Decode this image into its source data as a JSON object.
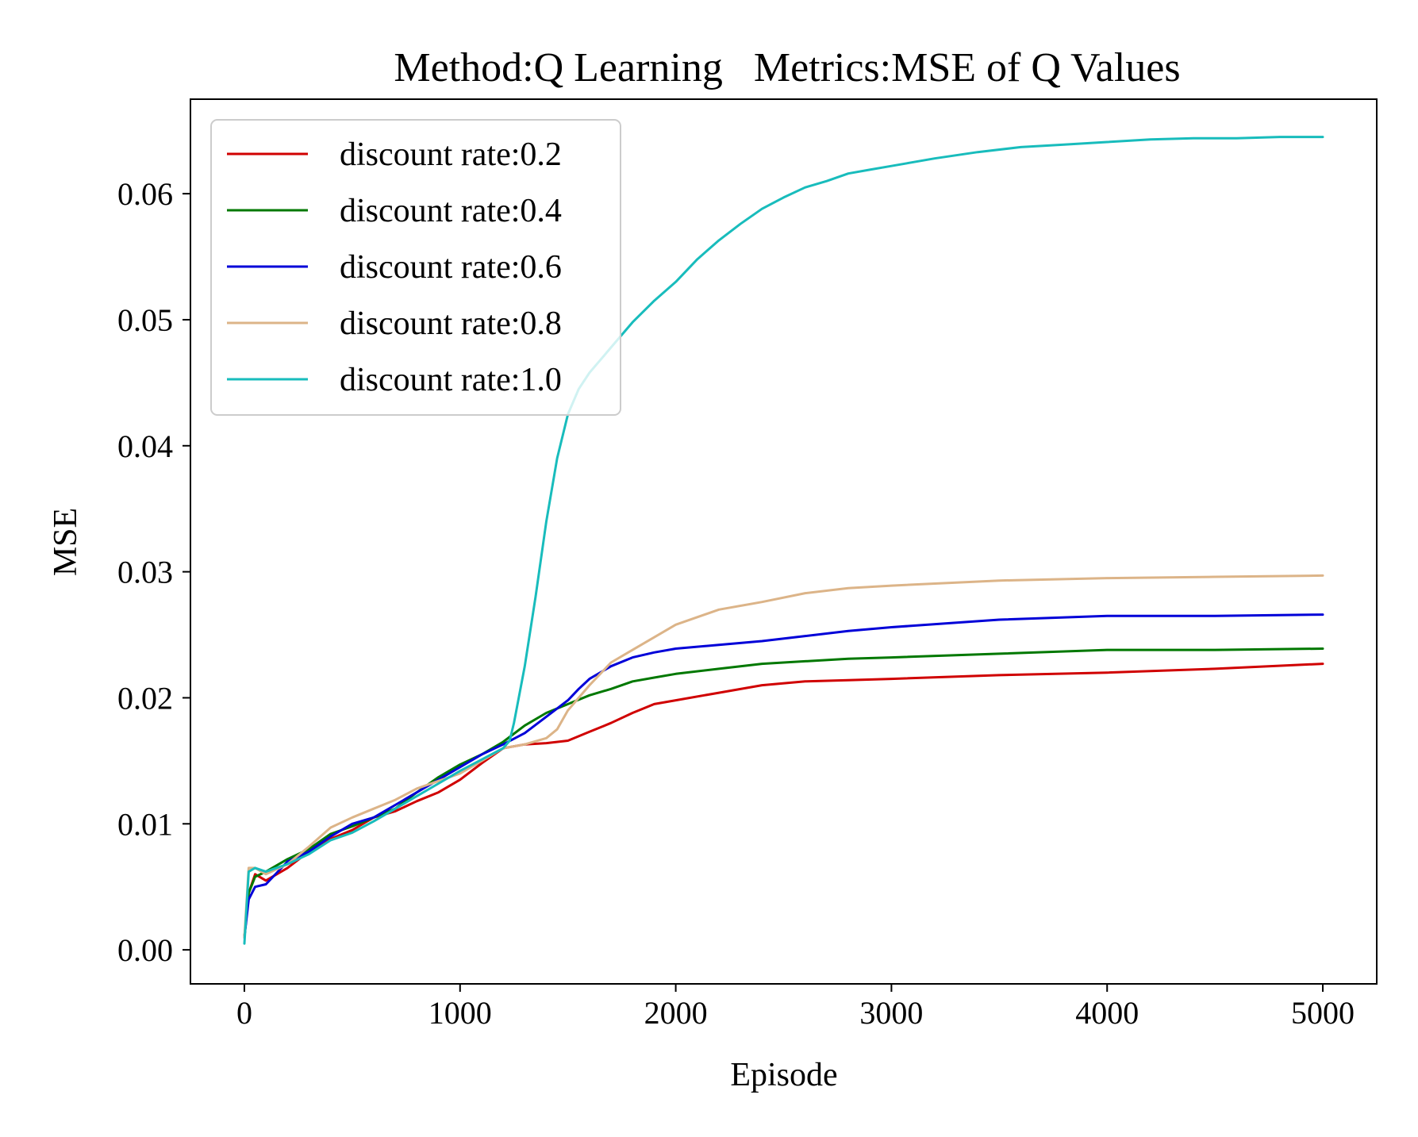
{
  "chart_data": {
    "type": "line",
    "title": "Method:Q Learning   Metrics:MSE of Q Values",
    "xlabel": "Episode",
    "ylabel": "MSE",
    "xlim": [
      -250,
      5250
    ],
    "ylim": [
      -0.0027,
      0.0675
    ],
    "xticks": [
      0,
      1000,
      2000,
      3000,
      4000,
      5000
    ],
    "xtick_labels": [
      "0",
      "1000",
      "2000",
      "3000",
      "4000",
      "5000"
    ],
    "yticks": [
      0.0,
      0.01,
      0.02,
      0.03,
      0.04,
      0.05,
      0.06
    ],
    "ytick_labels": [
      "0.00",
      "0.01",
      "0.02",
      "0.03",
      "0.04",
      "0.05",
      "0.06"
    ],
    "grid": false,
    "legend_position": "upper-left",
    "series": [
      {
        "name": "discount rate:0.2",
        "color": "#d00000",
        "x": [
          0,
          20,
          50,
          100,
          200,
          300,
          400,
          500,
          600,
          700,
          800,
          900,
          1000,
          1100,
          1200,
          1300,
          1400,
          1500,
          1600,
          1700,
          1800,
          1900,
          2000,
          2200,
          2400,
          2600,
          2800,
          3000,
          3500,
          4000,
          4500,
          5000
        ],
        "y": [
          0.001,
          0.0045,
          0.006,
          0.0055,
          0.0065,
          0.0078,
          0.0088,
          0.0095,
          0.0105,
          0.011,
          0.0118,
          0.0125,
          0.0135,
          0.0148,
          0.016,
          0.0163,
          0.0164,
          0.0166,
          0.0173,
          0.018,
          0.0188,
          0.0195,
          0.0198,
          0.0204,
          0.021,
          0.0213,
          0.0214,
          0.0215,
          0.0218,
          0.022,
          0.0223,
          0.0227
        ]
      },
      {
        "name": "discount rate:0.4",
        "color": "#007800",
        "x": [
          0,
          20,
          50,
          100,
          200,
          300,
          400,
          500,
          600,
          700,
          800,
          900,
          1000,
          1100,
          1200,
          1300,
          1400,
          1500,
          1600,
          1700,
          1800,
          1900,
          2000,
          2200,
          2400,
          2600,
          2800,
          3000,
          3500,
          4000,
          4500,
          5000
        ],
        "y": [
          0.001,
          0.0045,
          0.0058,
          0.0062,
          0.0072,
          0.008,
          0.0092,
          0.0098,
          0.0105,
          0.0112,
          0.0125,
          0.0137,
          0.0147,
          0.0155,
          0.0165,
          0.0178,
          0.0188,
          0.0195,
          0.0202,
          0.0207,
          0.0213,
          0.0216,
          0.0219,
          0.0223,
          0.0227,
          0.0229,
          0.0231,
          0.0232,
          0.0235,
          0.0238,
          0.0238,
          0.0239
        ]
      },
      {
        "name": "discount rate:0.6",
        "color": "#0000d8",
        "x": [
          0,
          20,
          50,
          100,
          200,
          300,
          400,
          500,
          600,
          700,
          800,
          900,
          1000,
          1100,
          1200,
          1300,
          1400,
          1500,
          1550,
          1600,
          1700,
          1800,
          1900,
          2000,
          2200,
          2400,
          2600,
          2800,
          3000,
          3500,
          4000,
          4500,
          5000
        ],
        "y": [
          0.001,
          0.004,
          0.005,
          0.0052,
          0.007,
          0.0078,
          0.009,
          0.01,
          0.0105,
          0.0115,
          0.0125,
          0.0135,
          0.0145,
          0.0155,
          0.0163,
          0.0172,
          0.0185,
          0.0198,
          0.0207,
          0.0215,
          0.0225,
          0.0232,
          0.0236,
          0.0239,
          0.0242,
          0.0245,
          0.0249,
          0.0253,
          0.0256,
          0.0262,
          0.0265,
          0.0265,
          0.0266
        ]
      },
      {
        "name": "discount rate:0.8",
        "color": "#dcb488",
        "x": [
          0,
          20,
          50,
          100,
          200,
          300,
          400,
          500,
          600,
          700,
          800,
          900,
          1000,
          1100,
          1200,
          1300,
          1400,
          1450,
          1500,
          1600,
          1700,
          1800,
          1900,
          2000,
          2200,
          2400,
          2600,
          2800,
          3000,
          3500,
          4000,
          4500,
          5000
        ],
        "y": [
          0.001,
          0.0065,
          0.0065,
          0.006,
          0.0068,
          0.0082,
          0.0097,
          0.0105,
          0.0112,
          0.0119,
          0.0128,
          0.0134,
          0.014,
          0.015,
          0.016,
          0.0163,
          0.0168,
          0.0175,
          0.019,
          0.021,
          0.0228,
          0.0238,
          0.0248,
          0.0258,
          0.027,
          0.0276,
          0.0283,
          0.0287,
          0.0289,
          0.0293,
          0.0295,
          0.0296,
          0.0297
        ]
      },
      {
        "name": "discount rate:1.0",
        "color": "#18bcbc",
        "x": [
          0,
          20,
          50,
          100,
          200,
          300,
          400,
          500,
          600,
          700,
          800,
          900,
          1000,
          1100,
          1200,
          1230,
          1250,
          1300,
          1350,
          1400,
          1450,
          1500,
          1550,
          1600,
          1650,
          1700,
          1800,
          1900,
          2000,
          2100,
          2200,
          2300,
          2400,
          2500,
          2600,
          2700,
          2800,
          2900,
          3000,
          3200,
          3400,
          3600,
          3800,
          4000,
          4200,
          4400,
          4600,
          4800,
          5000
        ],
        "y": [
          0.0005,
          0.0062,
          0.0065,
          0.0062,
          0.0068,
          0.0076,
          0.0087,
          0.0093,
          0.0102,
          0.0112,
          0.0122,
          0.0132,
          0.0142,
          0.0151,
          0.016,
          0.0166,
          0.018,
          0.0225,
          0.028,
          0.034,
          0.039,
          0.0425,
          0.0445,
          0.0458,
          0.0468,
          0.0478,
          0.0498,
          0.0515,
          0.053,
          0.0548,
          0.0563,
          0.0576,
          0.0588,
          0.0597,
          0.0605,
          0.061,
          0.0616,
          0.0619,
          0.0622,
          0.0628,
          0.0633,
          0.0637,
          0.0639,
          0.0641,
          0.0643,
          0.0644,
          0.0644,
          0.0645,
          0.0645
        ]
      }
    ]
  }
}
